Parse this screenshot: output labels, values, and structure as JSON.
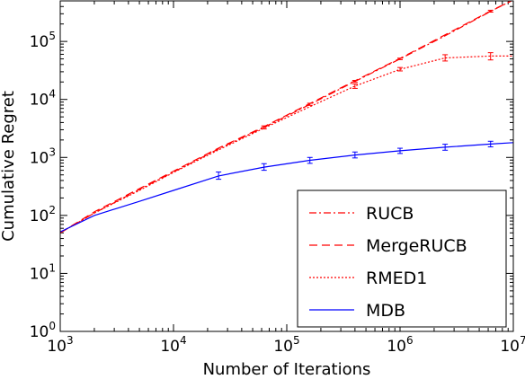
{
  "chart_data": {
    "type": "line",
    "xlabel": "Number of Iterations",
    "ylabel": "Cumulative Regret",
    "xscale": "log",
    "yscale": "log",
    "xlim": [
      1000,
      10000000
    ],
    "ylim": [
      1,
      500000
    ],
    "grid": false,
    "legend_position": "lower-right",
    "x_ticks": [
      {
        "base": "10",
        "exp": "3",
        "value": 1000
      },
      {
        "base": "10",
        "exp": "4",
        "value": 10000
      },
      {
        "base": "10",
        "exp": "5",
        "value": 100000
      },
      {
        "base": "10",
        "exp": "6",
        "value": 1000000
      },
      {
        "base": "10",
        "exp": "7",
        "value": 10000000
      }
    ],
    "y_ticks": [
      {
        "base": "10",
        "exp": "0",
        "value": 1
      },
      {
        "base": "10",
        "exp": "1",
        "value": 10
      },
      {
        "base": "10",
        "exp": "2",
        "value": 100
      },
      {
        "base": "10",
        "exp": "3",
        "value": 1000
      },
      {
        "base": "10",
        "exp": "4",
        "value": 10000
      },
      {
        "base": "10",
        "exp": "5",
        "value": 100000
      }
    ],
    "series": [
      {
        "name": "RUCB",
        "color": "#ff0000",
        "dash": "8,3,2,3",
        "x": [
          1000,
          2000,
          5000,
          10000,
          25000,
          63000,
          160000,
          400000,
          1000000,
          2500000,
          6300000,
          10000000
        ],
        "y": [
          50,
          110,
          280,
          560,
          1400,
          3300,
          8200,
          20500,
          50000,
          125000,
          330000,
          520000
        ],
        "err_x": [
          63000,
          160000,
          400000,
          1000000,
          6300000
        ],
        "err_lo": [
          3100,
          7900,
          19800,
          48500,
          320000
        ],
        "err_hi": [
          3500,
          8600,
          21300,
          51500,
          345000
        ]
      },
      {
        "name": "MergeRUCB",
        "color": "#ff0000",
        "dash": "9,5",
        "x": [
          1000,
          2000,
          5000,
          10000,
          25000,
          63000,
          160000,
          400000,
          1000000,
          2500000,
          6300000,
          10000000
        ],
        "y": [
          50,
          115,
          290,
          580,
          1450,
          3400,
          8500,
          21000,
          51000,
          130000,
          335000,
          520000
        ],
        "err_x": [],
        "err_lo": [],
        "err_hi": []
      },
      {
        "name": "RMED1",
        "color": "#ff0000",
        "dash": "2,2",
        "x": [
          1000,
          2000,
          5000,
          10000,
          25000,
          63000,
          160000,
          400000,
          1000000,
          2500000,
          6300000,
          10000000
        ],
        "y": [
          50,
          110,
          270,
          550,
          1350,
          3200,
          7500,
          17000,
          33000,
          52000,
          56000,
          56000
        ],
        "err_x": [
          400000,
          1000000,
          2500000,
          6300000
        ],
        "err_lo": [
          15500,
          31000,
          46000,
          48000
        ],
        "err_hi": [
          18500,
          35500,
          59000,
          64000
        ]
      },
      {
        "name": "MDB",
        "color": "#0000ff",
        "dash": "",
        "x": [
          1000,
          2000,
          5000,
          10000,
          25000,
          63000,
          160000,
          400000,
          1000000,
          2500000,
          6300000,
          10000000
        ],
        "y": [
          52,
          100,
          175,
          270,
          480,
          680,
          890,
          1100,
          1300,
          1500,
          1700,
          1800
        ],
        "err_x": [
          25000,
          63000,
          160000,
          400000,
          1000000,
          2500000,
          6300000
        ],
        "err_lo": [
          420,
          600,
          790,
          980,
          1170,
          1330,
          1520
        ],
        "err_hi": [
          560,
          780,
          1000,
          1240,
          1440,
          1690,
          1900
        ]
      }
    ]
  }
}
